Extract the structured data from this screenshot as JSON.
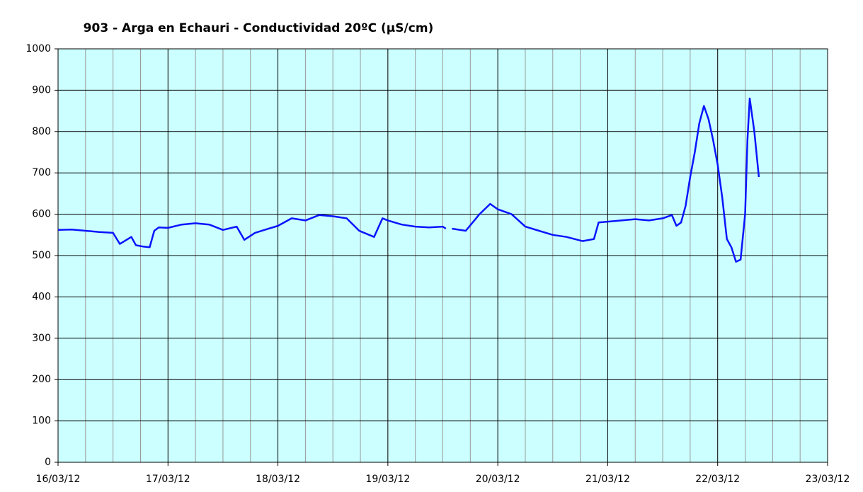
{
  "chart_data": {
    "type": "line",
    "title": "903 - Arga en Echauri - Conductividad 20ºC (µS/cm)",
    "x": [
      "2012-03-16T00:00",
      "2012-03-16T03:00",
      "2012-03-16T06:00",
      "2012-03-16T09:00",
      "2012-03-16T12:00",
      "2012-03-16T13:30",
      "2012-03-16T16:00",
      "2012-03-16T17:00",
      "2012-03-16T18:30",
      "2012-03-16T20:00",
      "2012-03-16T21:00",
      "2012-03-16T22:00",
      "2012-03-17T00:00",
      "2012-03-17T03:00",
      "2012-03-17T06:00",
      "2012-03-17T09:00",
      "2012-03-17T12:00",
      "2012-03-17T15:00",
      "2012-03-17T16:40",
      "2012-03-17T19:00",
      "2012-03-18T00:00",
      "2012-03-18T03:00",
      "2012-03-18T06:00",
      "2012-03-18T09:00",
      "2012-03-18T12:00",
      "2012-03-18T15:00",
      "2012-03-18T17:45",
      "2012-03-18T21:00",
      "2012-03-18T22:50",
      "2012-03-19T00:00",
      "2012-03-19T03:00",
      "2012-03-19T06:00",
      "2012-03-19T09:00",
      "2012-03-19T12:00",
      "2012-03-19T12:40",
      "2012-03-19T13:20",
      "2012-03-19T14:00",
      "2012-03-19T17:00",
      "2012-03-19T20:00",
      "2012-03-19T22:20",
      "2012-03-20T00:00",
      "2012-03-20T03:00",
      "2012-03-20T06:00",
      "2012-03-20T09:00",
      "2012-03-20T12:00",
      "2012-03-20T15:00",
      "2012-03-20T18:30",
      "2012-03-20T21:00",
      "2012-03-20T22:00",
      "2012-03-21T00:00",
      "2012-03-21T03:00",
      "2012-03-21T06:00",
      "2012-03-21T09:00",
      "2012-03-21T12:00",
      "2012-03-21T14:00",
      "2012-03-21T15:00",
      "2012-03-21T16:00",
      "2012-03-21T17:00",
      "2012-03-21T18:00",
      "2012-03-21T19:00",
      "2012-03-21T20:00",
      "2012-03-21T21:00",
      "2012-03-21T22:00",
      "2012-03-21T23:00",
      "2012-03-22T00:00",
      "2012-03-22T01:00",
      "2012-03-22T02:00",
      "2012-03-22T03:00",
      "2012-03-22T04:00",
      "2012-03-22T05:00",
      "2012-03-22T06:00",
      "2012-03-22T06:30",
      "2012-03-22T07:00",
      "2012-03-22T08:00",
      "2012-03-22T09:00"
    ],
    "values": [
      562,
      563,
      560,
      557,
      555,
      528,
      545,
      525,
      522,
      520,
      560,
      568,
      567,
      575,
      578,
      575,
      562,
      570,
      538,
      555,
      572,
      590,
      585,
      598,
      595,
      590,
      560,
      545,
      590,
      585,
      575,
      570,
      568,
      570,
      565,
      null,
      565,
      560,
      600,
      625,
      612,
      600,
      570,
      560,
      550,
      545,
      535,
      540,
      580,
      582,
      585,
      588,
      585,
      590,
      598,
      572,
      580,
      620,
      690,
      750,
      820,
      862,
      830,
      780,
      720,
      640,
      540,
      520,
      485,
      490,
      600,
      780,
      880,
      800,
      690
    ],
    "color": "#0a14ff",
    "xlim": [
      "2012-03-16T00:00",
      "2012-03-23T00:00"
    ],
    "xticks": [
      {
        "value": "2012-03-16T00:00",
        "label": "16/03/12"
      },
      {
        "value": "2012-03-17T00:00",
        "label": "17/03/12"
      },
      {
        "value": "2012-03-18T00:00",
        "label": "18/03/12"
      },
      {
        "value": "2012-03-19T00:00",
        "label": "19/03/12"
      },
      {
        "value": "2012-03-20T00:00",
        "label": "20/03/12"
      },
      {
        "value": "2012-03-21T00:00",
        "label": "21/03/12"
      },
      {
        "value": "2012-03-22T00:00",
        "label": "22/03/12"
      },
      {
        "value": "2012-03-23T00:00",
        "label": "23/03/12"
      }
    ],
    "ylim": [
      0,
      1000
    ],
    "yticks": [
      0,
      100,
      200,
      300,
      400,
      500,
      600,
      700,
      800,
      900,
      1000
    ],
    "grid": true
  }
}
